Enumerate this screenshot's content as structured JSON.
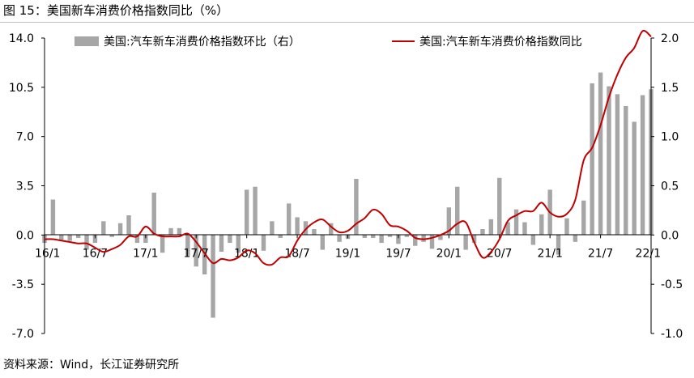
{
  "figure_title": "图 15：美国新车消费价格指数同比（%）",
  "source_note": "资料来源：Wind，长江证券研究所",
  "colors": {
    "bar": "#a6a6a6",
    "line": "#c00000",
    "axis": "#000000"
  },
  "chart_data": {
    "type": "bar+line",
    "legend_position": "top",
    "grid": false,
    "x_tick_labels": [
      "16/1",
      "16/7",
      "17/1",
      "17/7",
      "18/1",
      "18/7",
      "19/1",
      "19/7",
      "20/1",
      "20/7",
      "21/1",
      "21/7",
      "22/1"
    ],
    "left_axis": {
      "ylim": [
        -7.0,
        14.0
      ],
      "ticks": [
        "-7.0",
        "-3.5",
        "0.0",
        "3.5",
        "7.0",
        "10.5",
        "14.0"
      ]
    },
    "right_axis": {
      "ylim": [
        -1.0,
        2.0
      ],
      "ticks": [
        "-1.0",
        "-0.5",
        "0.0",
        "0.5",
        "1.0",
        "1.5",
        "2.0"
      ]
    },
    "months": [
      "2016-01",
      "2016-02",
      "2016-03",
      "2016-04",
      "2016-05",
      "2016-06",
      "2016-07",
      "2016-08",
      "2016-09",
      "2016-10",
      "2016-11",
      "2016-12",
      "2017-01",
      "2017-02",
      "2017-03",
      "2017-04",
      "2017-05",
      "2017-06",
      "2017-07",
      "2017-08",
      "2017-09",
      "2017-10",
      "2017-11",
      "2017-12",
      "2018-01",
      "2018-02",
      "2018-03",
      "2018-04",
      "2018-05",
      "2018-06",
      "2018-07",
      "2018-08",
      "2018-09",
      "2018-10",
      "2018-11",
      "2018-12",
      "2019-01",
      "2019-02",
      "2019-03",
      "2019-04",
      "2019-05",
      "2019-06",
      "2019-07",
      "2019-08",
      "2019-09",
      "2019-10",
      "2019-11",
      "2019-12",
      "2020-01",
      "2020-02",
      "2020-03",
      "2020-04",
      "2020-05",
      "2020-06",
      "2020-07",
      "2020-08",
      "2020-09",
      "2020-10",
      "2020-11",
      "2020-12",
      "2021-01",
      "2021-02",
      "2021-03",
      "2021-04",
      "2021-05",
      "2021-06",
      "2021-07",
      "2021-08",
      "2021-09",
      "2021-10",
      "2021-11",
      "2021-12",
      "2022-01"
    ],
    "series": [
      {
        "name": "美国:汽车新车消费价格指数环比（右）",
        "type": "bar",
        "axis": "right",
        "values": [
          -0.08,
          0.36,
          -0.05,
          -0.06,
          -0.03,
          -0.15,
          -0.08,
          0.14,
          -0.02,
          0.12,
          0.2,
          -0.08,
          -0.08,
          0.43,
          -0.18,
          0.07,
          0.07,
          -0.21,
          -0.32,
          -0.4,
          -0.84,
          -0.17,
          -0.08,
          -0.18,
          0.46,
          0.49,
          -0.16,
          0.14,
          -0.03,
          0.32,
          0.18,
          0.14,
          0.06,
          -0.15,
          0.12,
          -0.07,
          -0.04,
          0.57,
          -0.03,
          -0.03,
          -0.08,
          -0.02,
          -0.09,
          -0.02,
          -0.11,
          -0.07,
          -0.14,
          -0.05,
          0.28,
          0.49,
          -0.15,
          -0.08,
          0.06,
          0.16,
          0.58,
          0.13,
          0.26,
          0.13,
          -0.1,
          0.21,
          0.46,
          -0.2,
          0.17,
          -0.07,
          0.35,
          1.54,
          1.65,
          1.51,
          1.43,
          1.31,
          1.15,
          1.42,
          1.48
        ]
      },
      {
        "name": "美国:汽车新车消费价格指数同比",
        "type": "line",
        "axis": "left",
        "values": [
          -0.3,
          -0.3,
          -0.4,
          -0.5,
          -0.6,
          -0.6,
          -0.9,
          -1.2,
          -1.0,
          -0.7,
          -0.1,
          -0.1,
          0.6,
          0.1,
          -0.1,
          -0.1,
          -0.1,
          0.1,
          -0.5,
          -1.3,
          -2.0,
          -1.7,
          -1.8,
          -1.6,
          -1.1,
          -1.3,
          -2.0,
          -2.1,
          -1.6,
          -1.5,
          -0.4,
          0.4,
          0.9,
          1.1,
          0.6,
          0.2,
          0.3,
          0.8,
          1.2,
          1.8,
          1.5,
          0.7,
          0.6,
          0.3,
          -0.2,
          -0.3,
          -0.2,
          0.0,
          0.3,
          0.8,
          0.9,
          -0.5,
          -1.6,
          -1.2,
          -0.3,
          1.0,
          1.4,
          1.7,
          1.7,
          2.3,
          1.6,
          1.3,
          1.5,
          2.5,
          5.3,
          6.2,
          7.8,
          9.8,
          11.4,
          12.6,
          13.3,
          14.5,
          14.1
        ]
      }
    ]
  }
}
